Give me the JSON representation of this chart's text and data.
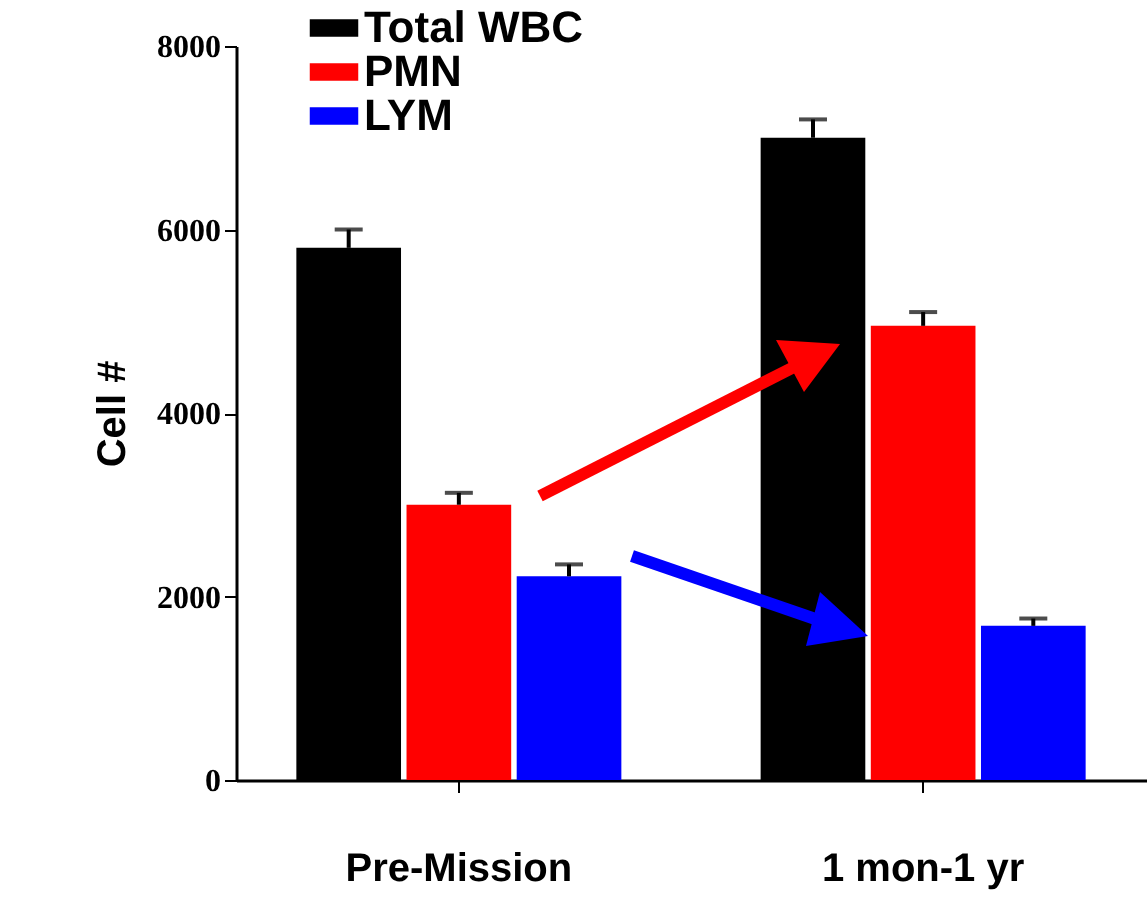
{
  "chart_data": {
    "type": "bar",
    "ylabel": "Cell #",
    "categories": [
      "Pre-Mission",
      "1 mon-1 yr"
    ],
    "series": [
      {
        "name": "Total WBC",
        "color": "#000000",
        "values": [
          5800,
          7000
        ],
        "errors": [
          200,
          200
        ]
      },
      {
        "name": "PMN",
        "color": "#ff0000",
        "values": [
          3000,
          4950
        ],
        "errors": [
          130,
          150
        ]
      },
      {
        "name": "LYM",
        "color": "#0000ff",
        "values": [
          2220,
          1680
        ],
        "errors": [
          130,
          80
        ]
      }
    ],
    "ylim": [
      0,
      8000
    ],
    "yticks": [
      0,
      2000,
      4000,
      6000,
      8000
    ],
    "grid": false,
    "legend": "top left"
  }
}
